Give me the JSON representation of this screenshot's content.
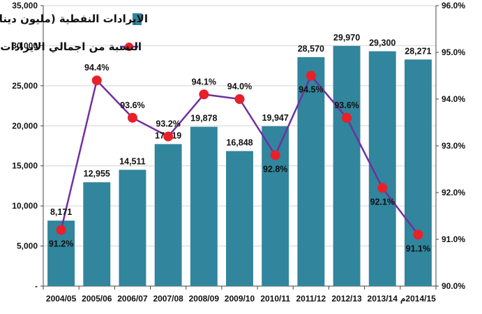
{
  "chart_data": {
    "type": "bar",
    "categories": [
      "2004/05",
      "2005/06",
      "2006/07",
      "2007/08",
      "2008/09",
      "2009/10",
      "2010/11",
      "2011/12",
      "2012/13",
      "2013/14",
      "2014/15م"
    ],
    "series": [
      {
        "name": "الايرادات النفطية (مليون دينار)",
        "type": "bar",
        "axis": "left",
        "values": [
          8171,
          12955,
          14511,
          17719,
          19878,
          16848,
          19947,
          28570,
          29970,
          29300,
          28271
        ],
        "labels": [
          "8,171",
          "12,955",
          "14,511",
          "17,719",
          "19,878",
          "16,848",
          "19,947",
          "28,570",
          "29,970",
          "29,300",
          "28,271"
        ],
        "color": "#31859C"
      },
      {
        "name": "النسبة من اجمالي الايرادات",
        "type": "line",
        "axis": "right",
        "values": [
          91.2,
          94.4,
          93.6,
          93.2,
          94.1,
          94.0,
          92.8,
          94.5,
          93.6,
          92.1,
          91.1
        ],
        "labels": [
          "91.2%",
          "94.4%",
          "93.6%",
          "93.2%",
          "94.1%",
          "94.0%",
          "92.8%",
          "94.5%",
          "93.6%",
          "92.1%",
          "91.1%"
        ],
        "line_color": "#7030A0",
        "marker_color": "#E8202A"
      }
    ],
    "y_left": {
      "range": [
        0,
        35000
      ],
      "ticks": [
        0,
        5000,
        10000,
        15000,
        20000,
        25000,
        30000,
        35000
      ],
      "tick_labels": [
        "-",
        "5,000",
        "10,000",
        "15,000",
        "20,000",
        "25,000",
        "30,000",
        "35,000"
      ]
    },
    "y_right": {
      "range": [
        90.0,
        96.0
      ],
      "ticks": [
        90,
        91,
        92,
        93,
        94,
        95,
        96
      ],
      "tick_labels": [
        "90.0%",
        "91.0%",
        "92.0%",
        "93.0%",
        "94.0%",
        "95.0%",
        "96.0%"
      ]
    },
    "grid": true,
    "legend_position": "top-center"
  }
}
